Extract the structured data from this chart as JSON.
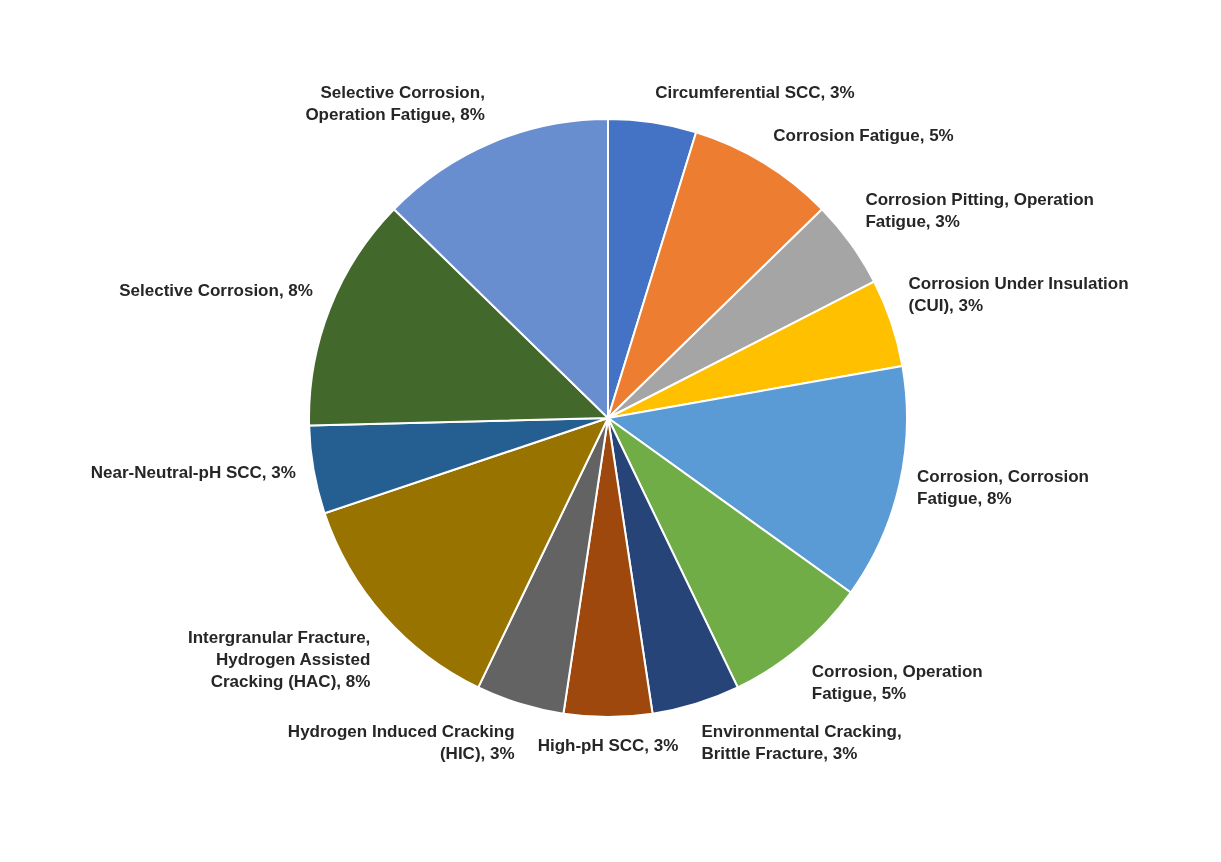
{
  "chart_data": {
    "type": "pie",
    "categories": [
      "Circumferential SCC",
      "Corrosion Fatigue",
      "Corrosion Pitting, Operation Fatigue",
      "Corrosion Under Insulation (CUI)",
      "Corrosion, Corrosion Fatigue",
      "Corrosion, Operation Fatigue",
      "Environmental Cracking, Brittle Fracture",
      "High-pH SCC",
      "Hydrogen Induced Cracking (HIC)",
      "Intergranular Fracture, Hydrogen Assisted Cracking (HAC)",
      "Near-Neutral-pH SCC",
      "Selective Corrosion",
      "Selective Corrosion, Operation Fatigue"
    ],
    "values": [
      3,
      5,
      3,
      3,
      8,
      5,
      3,
      3,
      3,
      8,
      3,
      8,
      8
    ],
    "value_labels": [
      "3%",
      "5%",
      "3%",
      "3%",
      "8%",
      "5%",
      "3%",
      "3%",
      "3%",
      "8%",
      "3%",
      "8%",
      "8%"
    ],
    "colors": [
      "#4472c4",
      "#ed7d31",
      "#a5a5a5",
      "#ffc000",
      "#5b9bd5",
      "#70ad47",
      "#264478",
      "#9e480e",
      "#636363",
      "#997300",
      "#255e91",
      "#43682b",
      "#698ed0"
    ],
    "legend": false
  }
}
